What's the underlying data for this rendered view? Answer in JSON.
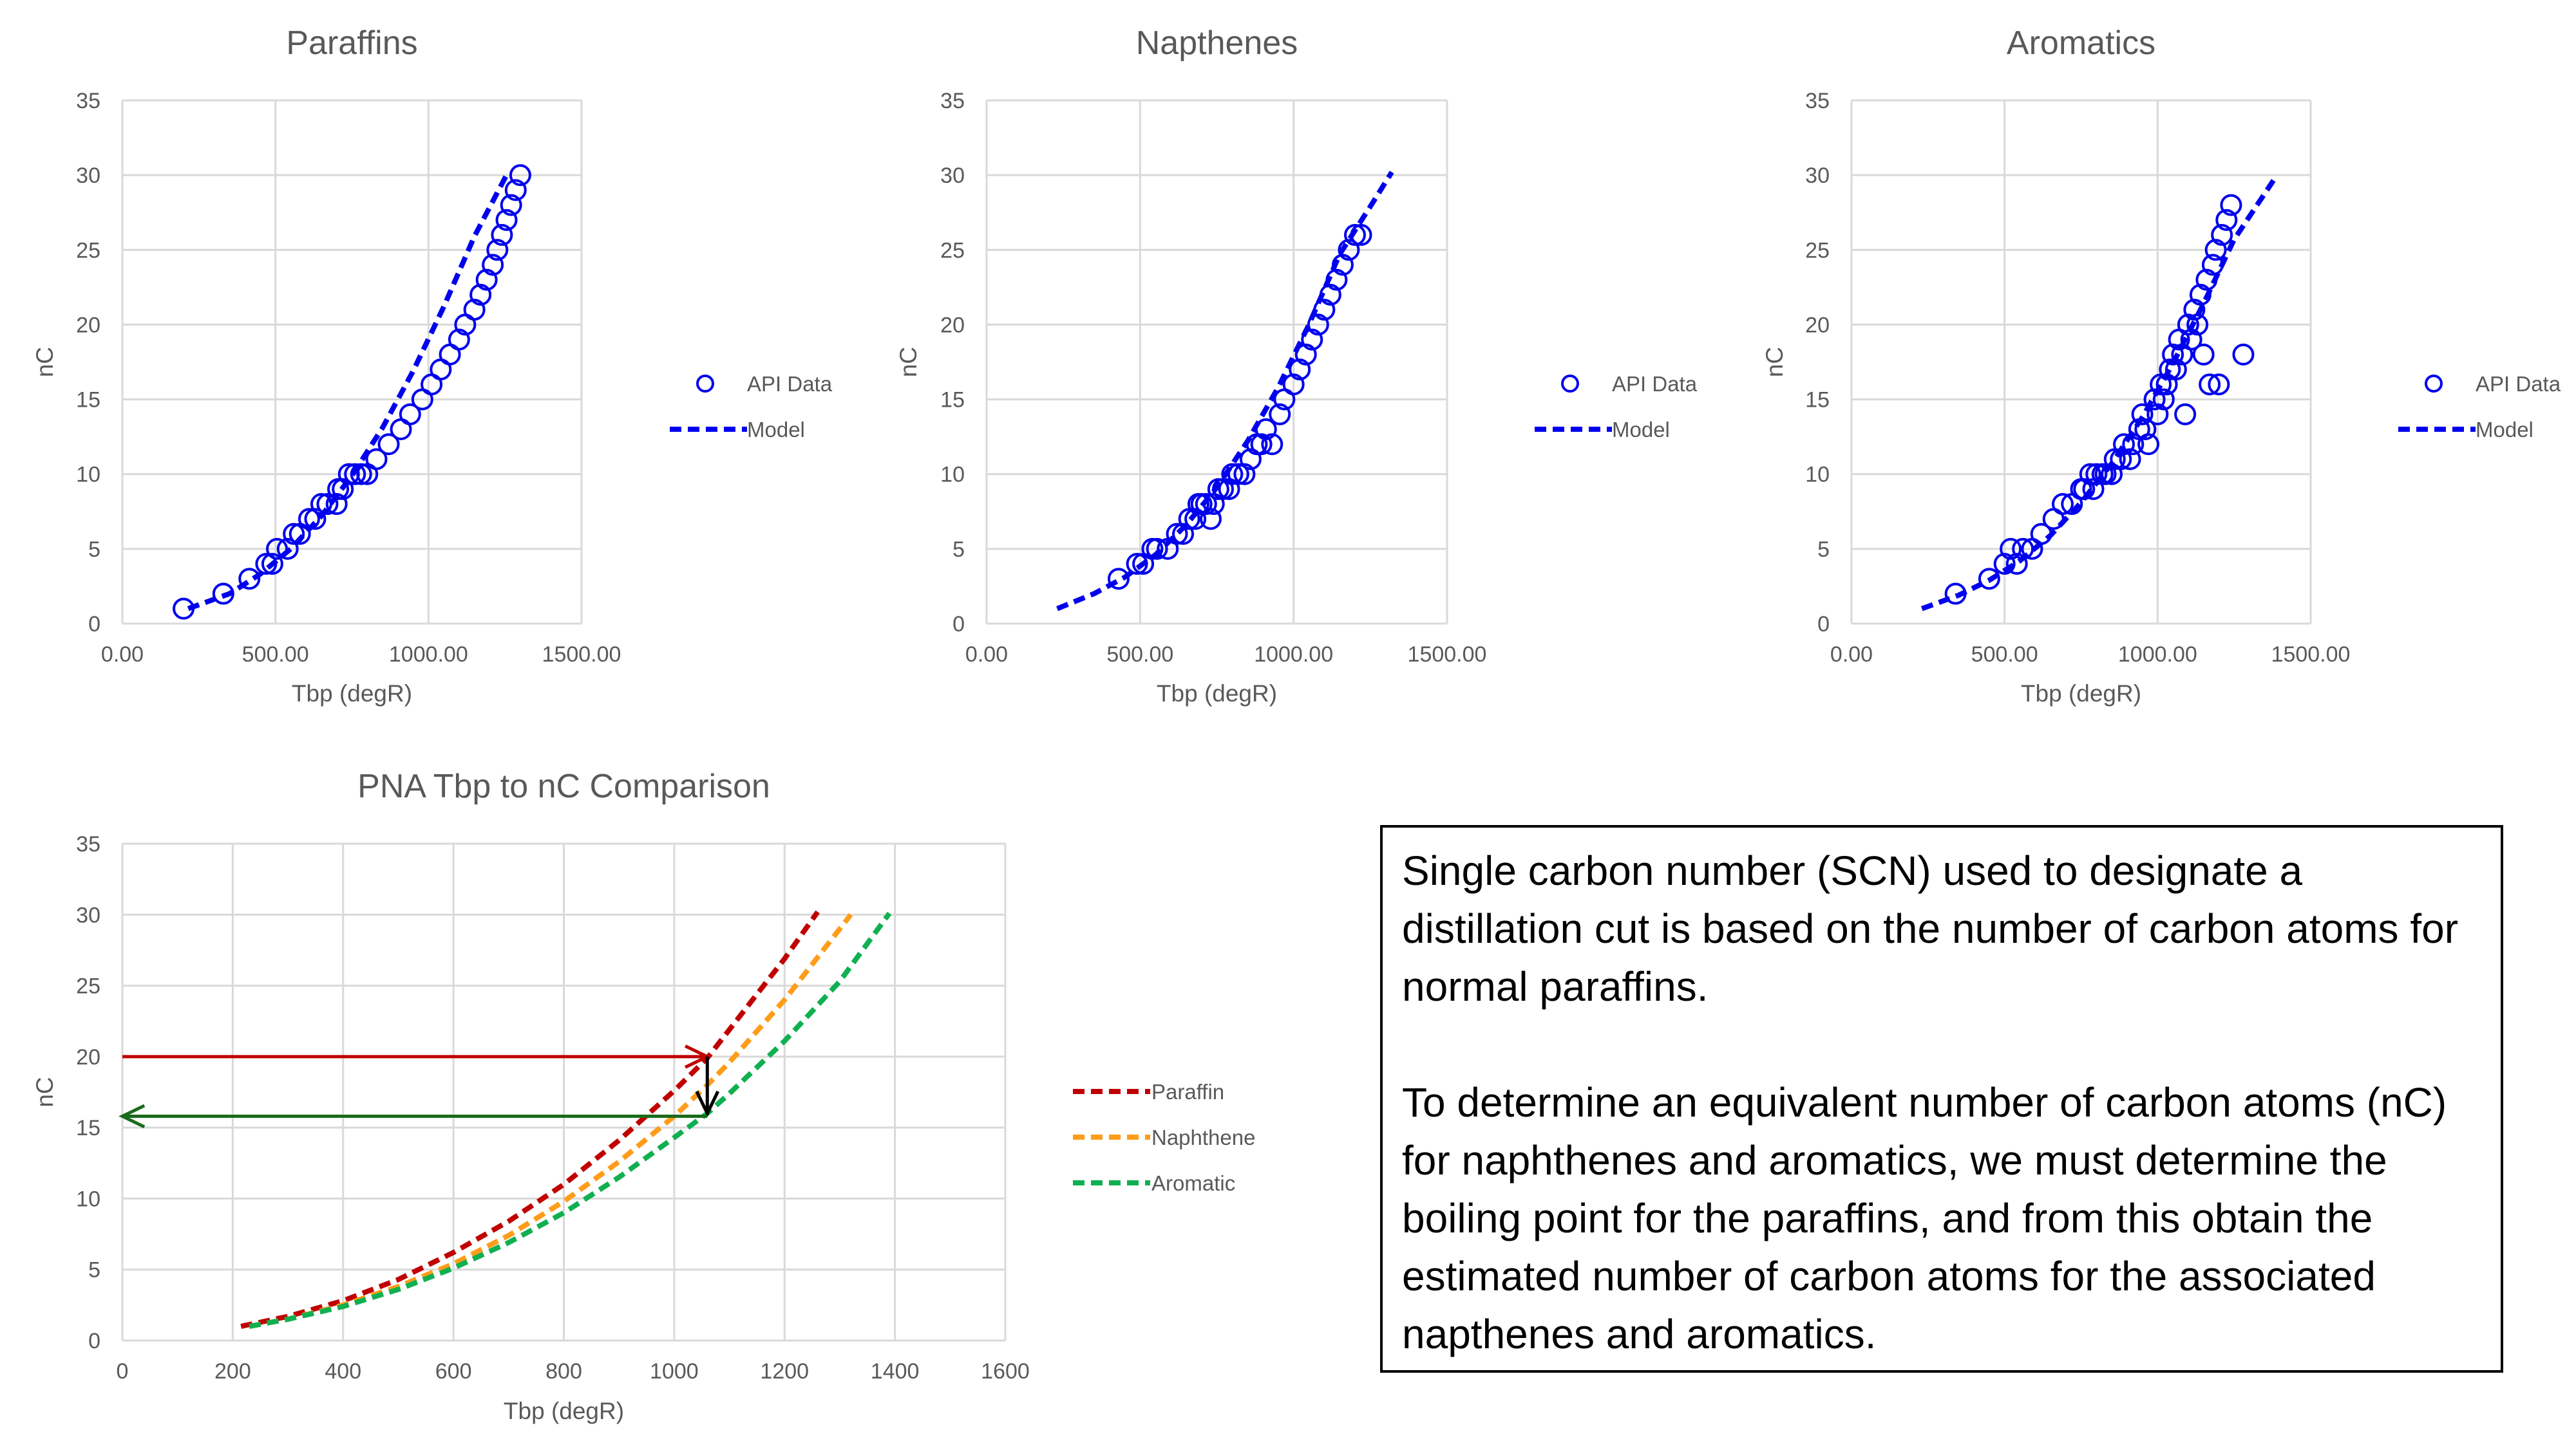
{
  "charts": {
    "paraffins": {
      "title": "Paraffins",
      "xlabel": "Tbp (degR)",
      "ylabel": "nC",
      "x_ticks": [
        "0.00",
        "500.00",
        "1000.00",
        "1500.00"
      ],
      "y_ticks": [
        "0",
        "5",
        "10",
        "15",
        "20",
        "25",
        "30",
        "35"
      ],
      "legend": [
        "API Data",
        "Model"
      ]
    },
    "napthenes": {
      "title": "Napthenes",
      "xlabel": "Tbp (degR)",
      "ylabel": "nC",
      "x_ticks": [
        "0.00",
        "500.00",
        "1000.00",
        "1500.00"
      ],
      "y_ticks": [
        "0",
        "5",
        "10",
        "15",
        "20",
        "25",
        "30",
        "35"
      ],
      "legend": [
        "API Data",
        "Model"
      ]
    },
    "aromatics": {
      "title": "Aromatics",
      "xlabel": "Tbp (degR)",
      "ylabel": "nC",
      "x_ticks": [
        "0.00",
        "500.00",
        "1000.00",
        "1500.00"
      ],
      "y_ticks": [
        "0",
        "5",
        "10",
        "15",
        "20",
        "25",
        "30",
        "35"
      ],
      "legend": [
        "API Data",
        "Model"
      ]
    },
    "comparison": {
      "title": "PNA Tbp to nC Comparison",
      "xlabel": "Tbp (degR)",
      "ylabel": "nC",
      "x_ticks": [
        "0",
        "200",
        "400",
        "600",
        "800",
        "1000",
        "1200",
        "1400",
        "1600"
      ],
      "y_ticks": [
        "0",
        "5",
        "10",
        "15",
        "20",
        "25",
        "30",
        "35"
      ],
      "legend": [
        "Paraffin",
        "Naphthene",
        "Aromatic"
      ]
    }
  },
  "note": {
    "paragraph1": "Single carbon number (SCN) used to designate a distillation cut is based on the number of carbon atoms for normal paraffins.",
    "paragraph2": "To determine an equivalent number of carbon atoms (nC) for naphthenes and aromatics, we must determine the boiling point for the paraffins, and from this obtain the estimated number of carbon atoms for the associated napthenes and aromatics."
  },
  "colors": {
    "api_blue": "#0000ee",
    "paraffin": "#c00000",
    "naphthene": "#ff9c19",
    "aromatic": "#10b050",
    "arrow_red": "#c00000",
    "arrow_green": "#1a6b1a",
    "arrow_black": "#000000",
    "grid": "#d9d9d9",
    "text": "#595959"
  },
  "chart_data": [
    {
      "type": "scatter",
      "id": "paraffins",
      "title": "Paraffins",
      "xlabel": "Tbp (degR)",
      "ylabel": "nC",
      "xlim": [
        0,
        1500
      ],
      "ylim": [
        0,
        35
      ],
      "grid": true,
      "legend_position": "right",
      "series": [
        {
          "name": "API Data",
          "kind": "markers",
          "points": [
            [
              200,
              1
            ],
            [
              330,
              2
            ],
            [
              415,
              3
            ],
            [
              470,
              4
            ],
            [
              490,
              4
            ],
            [
              505,
              5
            ],
            [
              540,
              5
            ],
            [
              560,
              6
            ],
            [
              580,
              6
            ],
            [
              610,
              7
            ],
            [
              630,
              7
            ],
            [
              650,
              8
            ],
            [
              670,
              8
            ],
            [
              700,
              8
            ],
            [
              705,
              9
            ],
            [
              720,
              9
            ],
            [
              740,
              10
            ],
            [
              760,
              10
            ],
            [
              780,
              10
            ],
            [
              800,
              10
            ],
            [
              830,
              11
            ],
            [
              870,
              12
            ],
            [
              910,
              13
            ],
            [
              940,
              14
            ],
            [
              980,
              15
            ],
            [
              1010,
              16
            ],
            [
              1040,
              17
            ],
            [
              1070,
              18
            ],
            [
              1100,
              19
            ],
            [
              1120,
              20
            ],
            [
              1150,
              21
            ],
            [
              1170,
              22
            ],
            [
              1190,
              23
            ],
            [
              1210,
              24
            ],
            [
              1225,
              25
            ],
            [
              1240,
              26
            ],
            [
              1255,
              27
            ],
            [
              1270,
              28
            ],
            [
              1285,
              29
            ],
            [
              1300,
              30
            ]
          ]
        },
        {
          "name": "Model",
          "kind": "dashed-line",
          "points": [
            [
              215,
              1
            ],
            [
              350,
              2
            ],
            [
              450,
              3.3
            ],
            [
              550,
              5
            ],
            [
              650,
              7.2
            ],
            [
              750,
              9.9
            ],
            [
              850,
              13.1
            ],
            [
              950,
              16.9
            ],
            [
              1050,
              21.2
            ],
            [
              1150,
              25.9
            ],
            [
              1260,
              30.2
            ]
          ]
        }
      ]
    },
    {
      "type": "scatter",
      "id": "napthenes",
      "title": "Napthenes",
      "xlabel": "Tbp (degR)",
      "ylabel": "nC",
      "xlim": [
        0,
        1500
      ],
      "ylim": [
        0,
        35
      ],
      "grid": true,
      "legend_position": "right",
      "series": [
        {
          "name": "API Data",
          "kind": "markers",
          "points": [
            [
              430,
              3
            ],
            [
              490,
              4
            ],
            [
              510,
              4
            ],
            [
              540,
              5
            ],
            [
              555,
              5
            ],
            [
              590,
              5
            ],
            [
              620,
              6
            ],
            [
              640,
              6
            ],
            [
              660,
              7
            ],
            [
              680,
              7
            ],
            [
              690,
              8
            ],
            [
              700,
              8
            ],
            [
              715,
              8
            ],
            [
              730,
              7
            ],
            [
              740,
              8
            ],
            [
              755,
              9
            ],
            [
              770,
              9
            ],
            [
              790,
              9
            ],
            [
              800,
              10
            ],
            [
              820,
              10
            ],
            [
              840,
              10
            ],
            [
              860,
              11
            ],
            [
              880,
              12
            ],
            [
              895,
              12
            ],
            [
              910,
              13
            ],
            [
              930,
              12
            ],
            [
              955,
              14
            ],
            [
              970,
              15
            ],
            [
              1000,
              16
            ],
            [
              1020,
              17
            ],
            [
              1040,
              18
            ],
            [
              1060,
              19
            ],
            [
              1080,
              20
            ],
            [
              1100,
              21
            ],
            [
              1120,
              22
            ],
            [
              1140,
              23
            ],
            [
              1160,
              24
            ],
            [
              1180,
              25
            ],
            [
              1200,
              26
            ],
            [
              1220,
              26
            ]
          ]
        },
        {
          "name": "Model",
          "kind": "dashed-line",
          "points": [
            [
              230,
              1
            ],
            [
              350,
              2
            ],
            [
              450,
              3.1
            ],
            [
              550,
              4.6
            ],
            [
              650,
              6.6
            ],
            [
              750,
              9.1
            ],
            [
              850,
              12.2
            ],
            [
              950,
              15.8
            ],
            [
              1050,
              20
            ],
            [
              1150,
              24.7
            ],
            [
              1250,
              27.9
            ],
            [
              1320,
              30.2
            ]
          ]
        }
      ]
    },
    {
      "type": "scatter",
      "id": "aromatics",
      "title": "Aromatics",
      "xlabel": "Tbp (degR)",
      "ylabel": "nC",
      "xlim": [
        0,
        1500
      ],
      "ylim": [
        0,
        35
      ],
      "grid": true,
      "legend_position": "right",
      "series": [
        {
          "name": "API Data",
          "kind": "markers",
          "points": [
            [
              340,
              2
            ],
            [
              450,
              3
            ],
            [
              500,
              4
            ],
            [
              520,
              5
            ],
            [
              540,
              4
            ],
            [
              560,
              5
            ],
            [
              590,
              5
            ],
            [
              620,
              6
            ],
            [
              660,
              7
            ],
            [
              690,
              8
            ],
            [
              720,
              8
            ],
            [
              750,
              9
            ],
            [
              760,
              9
            ],
            [
              780,
              10
            ],
            [
              790,
              9
            ],
            [
              800,
              10
            ],
            [
              820,
              10
            ],
            [
              830,
              10
            ],
            [
              850,
              10
            ],
            [
              860,
              11
            ],
            [
              880,
              11
            ],
            [
              890,
              12
            ],
            [
              910,
              11
            ],
            [
              920,
              12
            ],
            [
              940,
              13
            ],
            [
              950,
              14
            ],
            [
              960,
              13
            ],
            [
              970,
              12
            ],
            [
              990,
              15
            ],
            [
              1000,
              14
            ],
            [
              1010,
              16
            ],
            [
              1020,
              15
            ],
            [
              1030,
              16
            ],
            [
              1040,
              17
            ],
            [
              1050,
              18
            ],
            [
              1060,
              17
            ],
            [
              1070,
              19
            ],
            [
              1080,
              18
            ],
            [
              1090,
              14
            ],
            [
              1100,
              20
            ],
            [
              1110,
              19
            ],
            [
              1120,
              21
            ],
            [
              1130,
              20
            ],
            [
              1140,
              22
            ],
            [
              1150,
              18
            ],
            [
              1160,
              23
            ],
            [
              1170,
              16
            ],
            [
              1180,
              24
            ],
            [
              1190,
              25
            ],
            [
              1200,
              16
            ],
            [
              1210,
              26
            ],
            [
              1225,
              27
            ],
            [
              1240,
              28
            ],
            [
              1280,
              18
            ]
          ]
        },
        {
          "name": "Model",
          "kind": "dashed-line",
          "points": [
            [
              230,
              1
            ],
            [
              350,
              1.9
            ],
            [
              450,
              2.9
            ],
            [
              550,
              4.2
            ],
            [
              650,
              5.9
            ],
            [
              750,
              8.1
            ],
            [
              850,
              10.7
            ],
            [
              950,
              13.8
            ],
            [
              1050,
              17.4
            ],
            [
              1150,
              21.4
            ],
            [
              1250,
              25.7
            ],
            [
              1390,
              30
            ]
          ]
        }
      ]
    },
    {
      "type": "line",
      "id": "comparison",
      "title": "PNA Tbp to nC Comparison",
      "xlabel": "Tbp (degR)",
      "ylabel": "nC",
      "xlim": [
        0,
        1600
      ],
      "ylim": [
        0,
        35
      ],
      "grid": true,
      "legend_position": "right",
      "series": [
        {
          "name": "Paraffin",
          "kind": "dashed-line",
          "points": [
            [
              215,
              1
            ],
            [
              300,
              1.7
            ],
            [
              400,
              2.8
            ],
            [
              500,
              4.3
            ],
            [
              600,
              6.2
            ],
            [
              700,
              8.4
            ],
            [
              800,
              11
            ],
            [
              900,
              14.1
            ],
            [
              1000,
              17.6
            ],
            [
              1060,
              19.9
            ],
            [
              1100,
              21.9
            ],
            [
              1200,
              26.9
            ],
            [
              1260,
              30.2
            ]
          ]
        },
        {
          "name": "Naphthene",
          "kind": "dashed-line",
          "points": [
            [
              230,
              1
            ],
            [
              300,
              1.5
            ],
            [
              400,
              2.5
            ],
            [
              500,
              3.8
            ],
            [
              600,
              5.4
            ],
            [
              700,
              7.4
            ],
            [
              800,
              9.8
            ],
            [
              900,
              12.6
            ],
            [
              1000,
              15.8
            ],
            [
              1060,
              18
            ],
            [
              1100,
              19.6
            ],
            [
              1200,
              24
            ],
            [
              1320,
              30
            ]
          ]
        },
        {
          "name": "Aromatic",
          "kind": "dashed-line",
          "points": [
            [
              230,
              1
            ],
            [
              300,
              1.5
            ],
            [
              400,
              2.4
            ],
            [
              500,
              3.6
            ],
            [
              600,
              5.1
            ],
            [
              700,
              6.9
            ],
            [
              800,
              9
            ],
            [
              900,
              11.5
            ],
            [
              1000,
              14.3
            ],
            [
              1060,
              16
            ],
            [
              1100,
              17.4
            ],
            [
              1200,
              21.1
            ],
            [
              1300,
              25.3
            ],
            [
              1390,
              30.1
            ]
          ]
        }
      ],
      "annotations": [
        {
          "type": "arrow",
          "color": "arrow_red",
          "from": [
            0,
            20
          ],
          "to": [
            1060,
            20
          ]
        },
        {
          "type": "arrow",
          "color": "arrow_black",
          "from": [
            1060,
            20
          ],
          "to": [
            1060,
            16
          ]
        },
        {
          "type": "arrow",
          "color": "arrow_green",
          "from": [
            1060,
            15.8
          ],
          "to": [
            0,
            15.8
          ]
        }
      ]
    }
  ]
}
